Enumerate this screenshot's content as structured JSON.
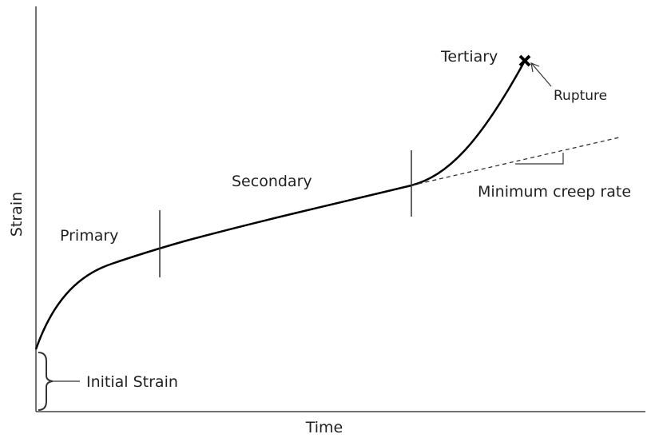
{
  "axes": {
    "x_label": "Time",
    "y_label": "Strain"
  },
  "stages": [
    "Primary",
    "Secondary",
    "Tertiary"
  ],
  "annotations": {
    "rupture": "Rupture",
    "min_creep_rate": "Minimum creep rate",
    "initial_strain": "Initial Strain"
  }
}
